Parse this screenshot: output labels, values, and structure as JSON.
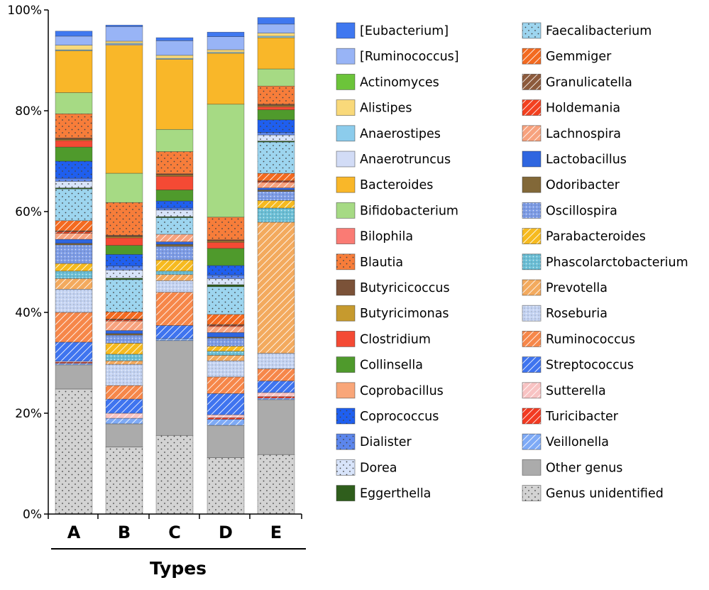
{
  "chart_data": {
    "type": "bar",
    "stacked": true,
    "title": "",
    "xlabel": "Types",
    "ylabel": "",
    "ylim": [
      0,
      100
    ],
    "yticks": [
      "0%",
      "20%",
      "40%",
      "60%",
      "80%",
      "100%"
    ],
    "categories": [
      "A",
      "B",
      "C",
      "D",
      "E"
    ],
    "legend_position": "right",
    "series": [
      {
        "name": "Genus unidentified",
        "color": "#d3d3d3",
        "pattern": "dots",
        "values": [
          24.8,
          13.3,
          15.6,
          11.2,
          11.8
        ]
      },
      {
        "name": "Other genus",
        "color": "#ababab",
        "pattern": "solid",
        "values": [
          4.8,
          4.6,
          18.8,
          6.4,
          10.9
        ]
      },
      {
        "name": "Veillonella",
        "color": "#7eaaf6",
        "pattern": "hatch",
        "values": [
          0.3,
          1.1,
          0.4,
          1.2,
          0.3
        ]
      },
      {
        "name": "Turicibacter",
        "color": "#f23a22",
        "pattern": "hatch",
        "values": [
          0.2,
          0.0,
          0.0,
          0.3,
          0.3
        ]
      },
      {
        "name": "Sutterella",
        "color": "#f8c3c3",
        "pattern": "hatch",
        "values": [
          0.2,
          1.0,
          0.0,
          0.6,
          0.8
        ]
      },
      {
        "name": "Streptococcus",
        "color": "#3f74ef",
        "pattern": "hatch",
        "values": [
          3.8,
          2.8,
          2.6,
          4.2,
          2.3
        ]
      },
      {
        "name": "Ruminococcus",
        "color": "#f6874a",
        "pattern": "hatch",
        "values": [
          5.9,
          2.7,
          6.6,
          3.3,
          2.4
        ]
      },
      {
        "name": "Roseburia",
        "color": "#c4d3f2",
        "pattern": "cross",
        "values": [
          4.6,
          4.2,
          2.3,
          3.2,
          3.1
        ]
      },
      {
        "name": "Prevotella",
        "color": "#f3aa5e",
        "pattern": "hatch",
        "values": [
          2.1,
          0.7,
          1.2,
          1.1,
          26.0
        ]
      },
      {
        "name": "Phascolarctobacterium",
        "color": "#6bbfd6",
        "pattern": "cross",
        "values": [
          1.5,
          1.3,
          0.7,
          0.8,
          2.8
        ]
      },
      {
        "name": "Parabacteroides",
        "color": "#f6ba1f",
        "pattern": "hatch",
        "values": [
          1.5,
          2.2,
          2.2,
          1.0,
          1.5
        ]
      },
      {
        "name": "Oscillospira",
        "color": "#7d9ce6",
        "pattern": "cross",
        "values": [
          3.7,
          1.6,
          2.7,
          1.6,
          1.8
        ]
      },
      {
        "name": "Odoribacter",
        "color": "#826838",
        "pattern": "solid",
        "values": [
          0.3,
          0.3,
          0.4,
          0.2,
          0.3
        ]
      },
      {
        "name": "Lactobacillus",
        "color": "#2f66e0",
        "pattern": "solid",
        "values": [
          0.8,
          0.6,
          0.5,
          0.9,
          0.4
        ]
      },
      {
        "name": "Lachnospira",
        "color": "#f7a27e",
        "pattern": "hatch",
        "values": [
          1.2,
          1.9,
          1.5,
          1.2,
          1.1
        ]
      },
      {
        "name": "Holdemania",
        "color": "#f3401f",
        "pattern": "hatch",
        "values": [
          0.3,
          0.2,
          0.0,
          0.2,
          0.2
        ]
      },
      {
        "name": "Granulicatella",
        "color": "#8c5a3c",
        "pattern": "hatch",
        "values": [
          0.2,
          0.2,
          0.0,
          0.2,
          0.1
        ]
      },
      {
        "name": "Gemmiger",
        "color": "#f36a20",
        "pattern": "hatch",
        "values": [
          2.0,
          1.4,
          0.0,
          2.0,
          1.5
        ]
      },
      {
        "name": "Faecalibacterium",
        "color": "#9dd5ef",
        "pattern": "dots",
        "values": [
          6.3,
          6.4,
          3.3,
          5.5,
          6.2
        ]
      },
      {
        "name": "Eggerthella",
        "color": "#2f5e1c",
        "pattern": "solid",
        "values": [
          0.2,
          0.3,
          0.2,
          0.4,
          0.2
        ]
      },
      {
        "name": "Dorea",
        "color": "#d8e4fa",
        "pattern": "dots",
        "values": [
          1.3,
          1.6,
          1.3,
          1.2,
          1.2
        ]
      },
      {
        "name": "Dialister",
        "color": "#5c86ec",
        "pattern": "dots",
        "values": [
          0.6,
          0.8,
          0.4,
          0.7,
          0.5
        ]
      },
      {
        "name": "Coprococcus",
        "color": "#1f5fef",
        "pattern": "dots",
        "values": [
          3.4,
          2.3,
          1.4,
          1.9,
          2.5
        ]
      },
      {
        "name": "Coprobacillus",
        "color": "#f9a679",
        "pattern": "solid",
        "values": [
          0.0,
          0.0,
          0.0,
          0.0,
          0.0
        ]
      },
      {
        "name": "Collinsella",
        "color": "#4f9a2c",
        "pattern": "solid",
        "values": [
          2.8,
          1.8,
          2.2,
          3.4,
          2.0
        ]
      },
      {
        "name": "Clostridium",
        "color": "#f44a34",
        "pattern": "solid",
        "values": [
          1.3,
          1.5,
          2.7,
          1.2,
          0.6
        ]
      },
      {
        "name": "Butyricimonas",
        "color": "#c69a2e",
        "pattern": "solid",
        "values": [
          0.2,
          0.2,
          0.2,
          0.2,
          0.2
        ]
      },
      {
        "name": "Butyricicoccus",
        "color": "#7b5238",
        "pattern": "solid",
        "values": [
          0.3,
          0.3,
          0.3,
          0.3,
          0.3
        ]
      },
      {
        "name": "Blautia",
        "color": "#f77d3a",
        "pattern": "dots",
        "values": [
          4.8,
          6.5,
          4.4,
          4.5,
          3.6
        ]
      },
      {
        "name": "Bilophila",
        "color": "#fa7b74",
        "pattern": "solid",
        "values": [
          0.0,
          0.0,
          0.0,
          0.0,
          0.0
        ]
      },
      {
        "name": "Bifidobacterium",
        "color": "#a6da84",
        "pattern": "solid",
        "values": [
          4.2,
          5.8,
          4.4,
          22.4,
          3.4
        ]
      },
      {
        "name": "Bacteroides",
        "color": "#f9b729",
        "pattern": "solid",
        "values": [
          8.3,
          25.4,
          13.9,
          10.1,
          6.2
        ]
      },
      {
        "name": "Anaerotruncus",
        "color": "#d2dcf6",
        "pattern": "solid",
        "values": [
          0.0,
          0.2,
          0.0,
          0.0,
          0.0
        ]
      },
      {
        "name": "Anaerostipes",
        "color": "#8cccec",
        "pattern": "solid",
        "values": [
          0.2,
          0.2,
          0.2,
          0.2,
          0.3
        ]
      },
      {
        "name": "Alistipes",
        "color": "#f9d97a",
        "pattern": "solid",
        "values": [
          0.9,
          0.4,
          0.6,
          0.5,
          0.6
        ]
      },
      {
        "name": "Actinomyces",
        "color": "#6cc43a",
        "pattern": "solid",
        "values": [
          0.0,
          0.0,
          0.0,
          0.0,
          0.0
        ]
      },
      {
        "name": "[Ruminococcus]",
        "color": "#98b4f6",
        "pattern": "solid",
        "values": [
          1.8,
          2.9,
          2.9,
          2.6,
          1.8
        ]
      },
      {
        "name": "[Eubacterium]",
        "color": "#3f78f0",
        "pattern": "solid",
        "values": [
          1.0,
          0.3,
          0.6,
          0.9,
          1.3
        ]
      }
    ],
    "legend_order": [
      "[Eubacterium]",
      "[Ruminococcus]",
      "Actinomyces",
      "Alistipes",
      "Anaerostipes",
      "Anaerotruncus",
      "Bacteroides",
      "Bifidobacterium",
      "Bilophila",
      "Blautia",
      "Butyricicoccus",
      "Butyricimonas",
      "Clostridium",
      "Collinsella",
      "Coprobacillus",
      "Coprococcus",
      "Dialister",
      "Dorea",
      "Eggerthella",
      "Faecalibacterium",
      "Gemmiger",
      "Granulicatella",
      "Holdemania",
      "Lachnospira",
      "Lactobacillus",
      "Odoribacter",
      "Oscillospira",
      "Parabacteroides",
      "Phascolarctobacterium",
      "Prevotella",
      "Roseburia",
      "Ruminococcus",
      "Streptococcus",
      "Sutterella",
      "Turicibacter",
      "Veillonella",
      "Other genus",
      "Genus unidentified"
    ]
  }
}
